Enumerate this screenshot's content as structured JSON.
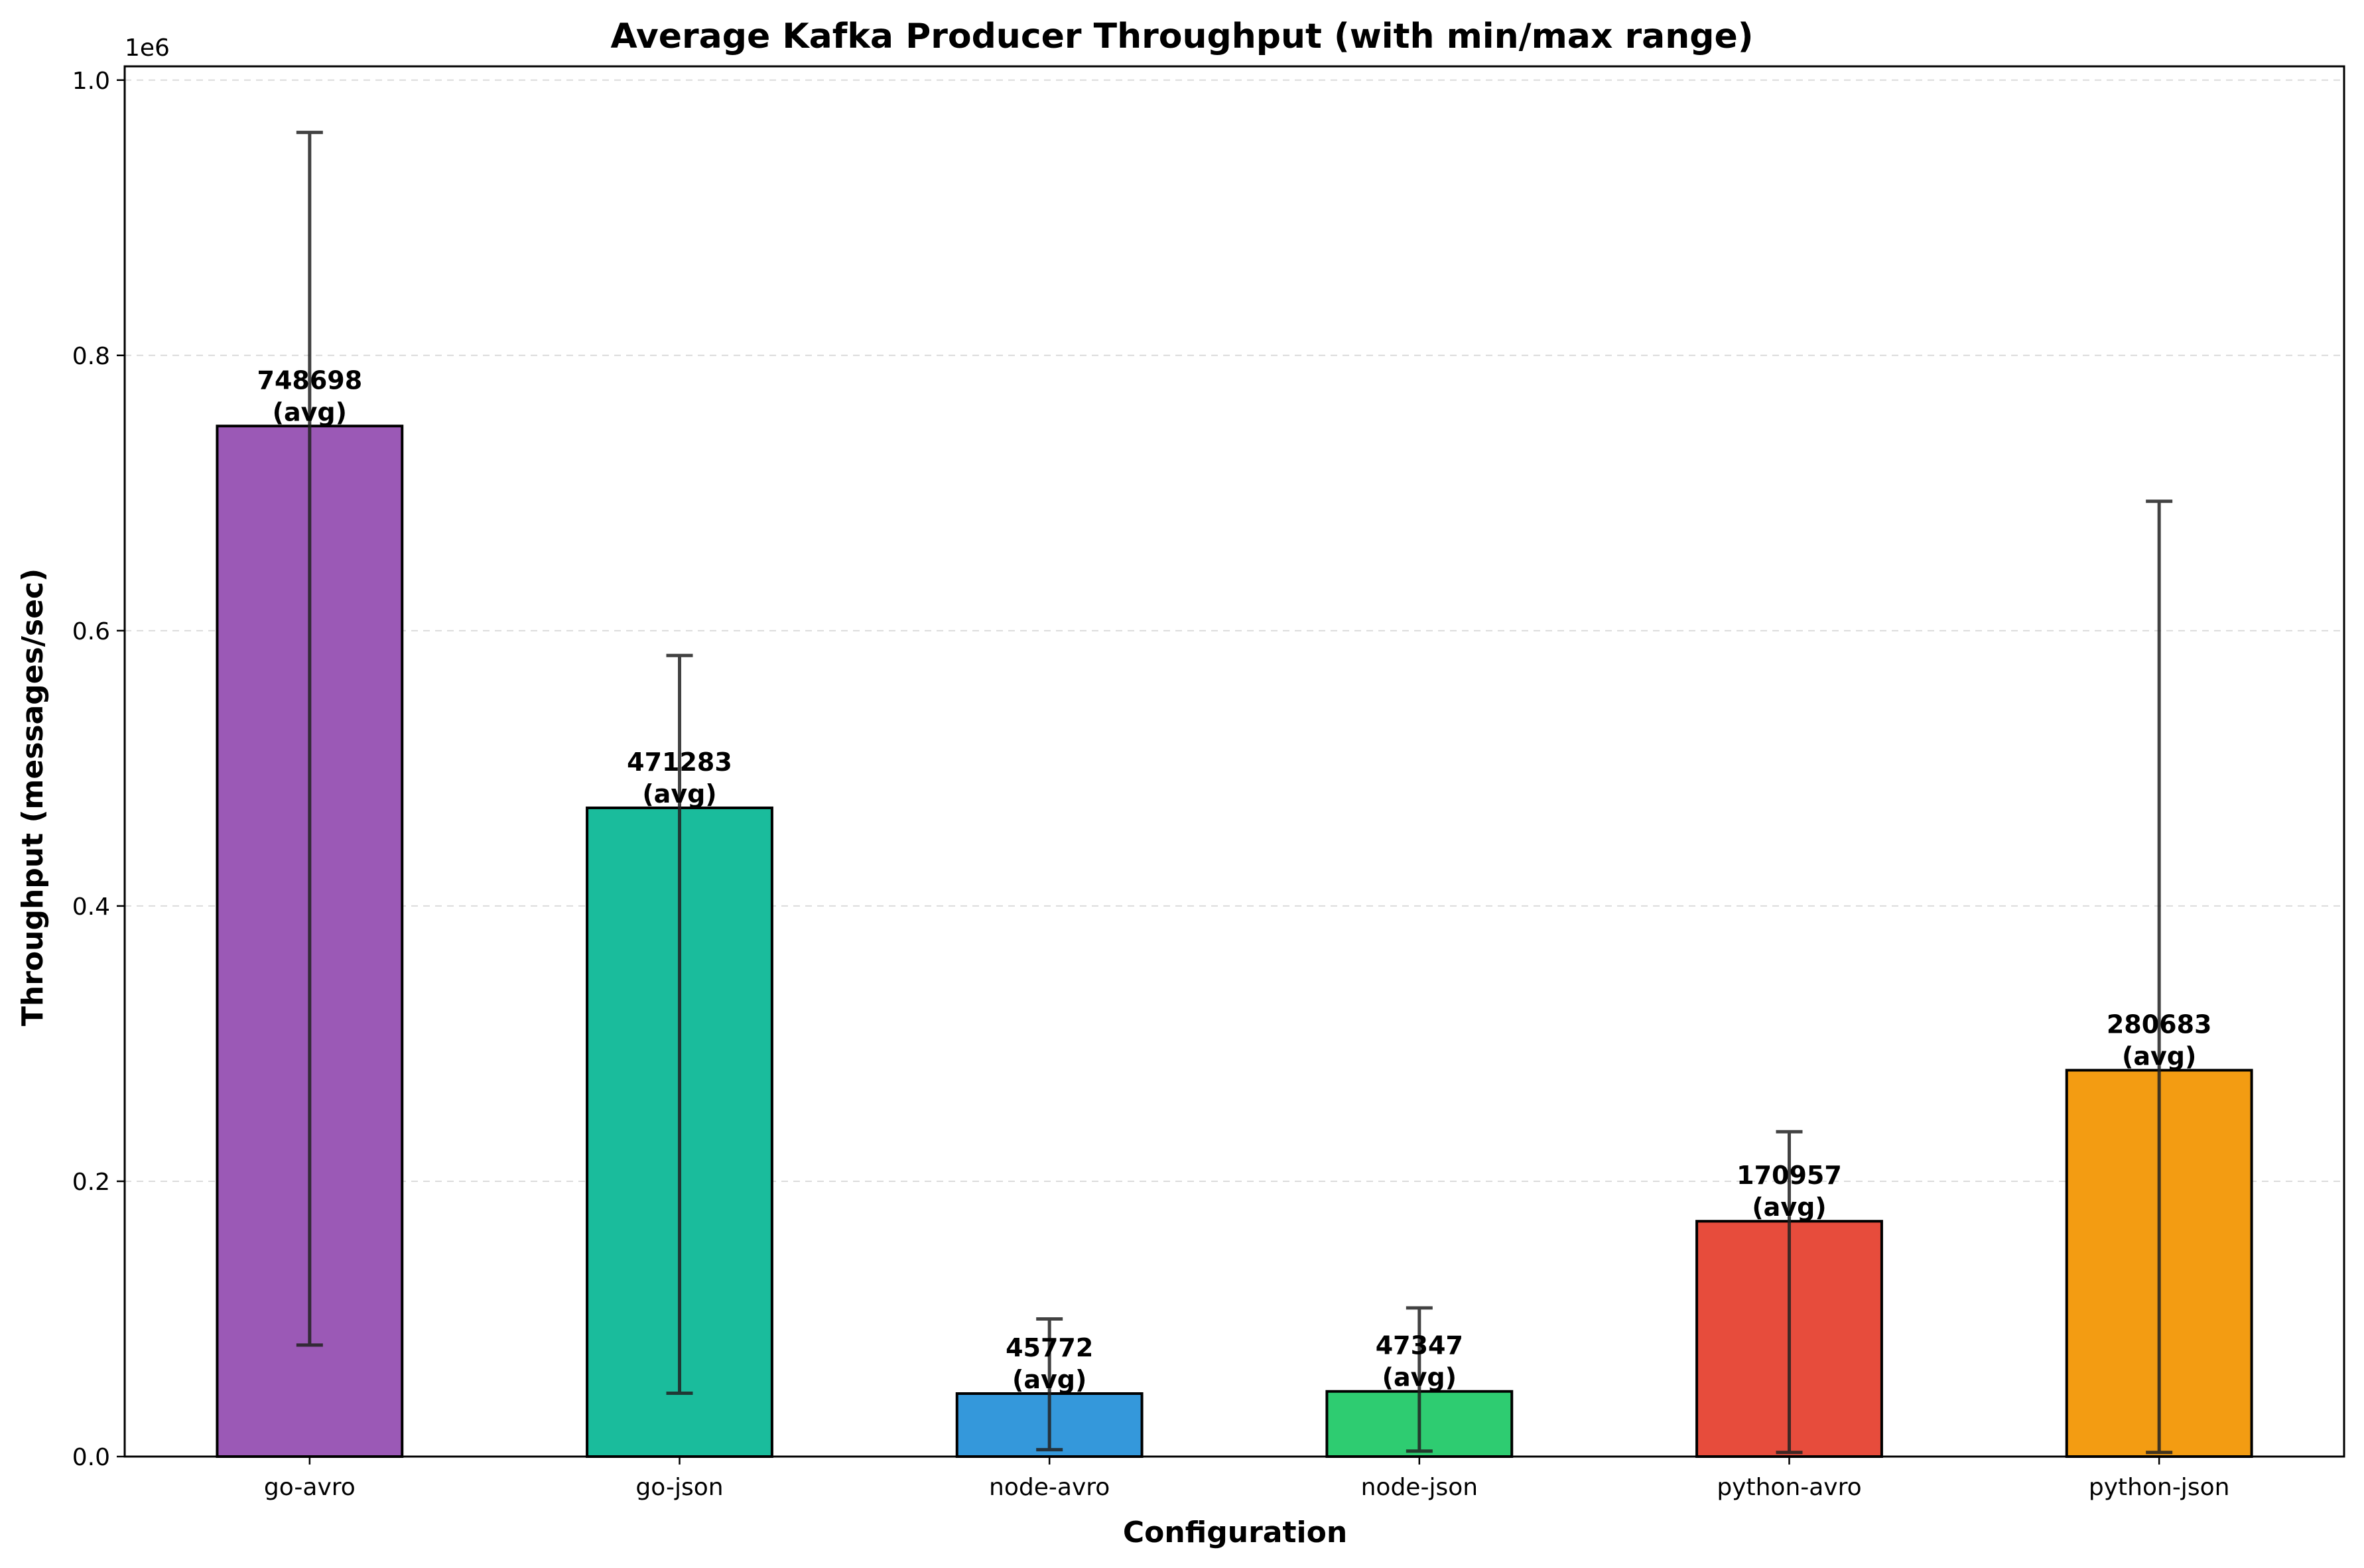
{
  "chart_data": {
    "type": "bar",
    "title": "Average Kafka Producer Throughput (with min/max range)",
    "xlabel": "Configuration",
    "ylabel": "Throughput (messages/sec)",
    "y_offset_label": "1e6",
    "ylim": [
      0,
      1010000
    ],
    "y_ticks": [
      0,
      200000,
      400000,
      600000,
      800000,
      1000000
    ],
    "y_tick_labels": [
      "0.0",
      "0.2",
      "0.4",
      "0.6",
      "0.8",
      "1.0"
    ],
    "grid": "horizontal dashed",
    "categories": [
      "go-avro",
      "go-json",
      "node-avro",
      "node-json",
      "python-avro",
      "python-json"
    ],
    "values": [
      748698,
      471283,
      45772,
      47347,
      170957,
      280683
    ],
    "min": [
      81000,
      46000,
      5000,
      4000,
      3000,
      3000
    ],
    "max": [
      962000,
      582000,
      100000,
      108000,
      236000,
      694000
    ],
    "value_labels": [
      "748698",
      "471283",
      "45772",
      "47347",
      "170957",
      "280683"
    ],
    "value_label_suffix": "(avg)",
    "colors": [
      "#9b59b6",
      "#1abc9c",
      "#3498db",
      "#2ecc71",
      "#e74c3c",
      "#f39c12"
    ]
  }
}
